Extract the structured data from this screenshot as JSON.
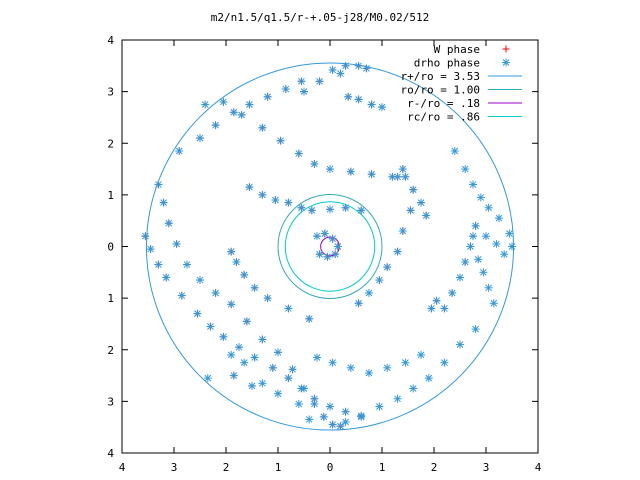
{
  "chart_data": {
    "type": "scatter",
    "title": "m2/n1.5/q1.5/r-+.05-j28/M0.02/512",
    "xlim": [
      -4,
      4
    ],
    "ylim": [
      -4,
      4
    ],
    "x_tick_labels": [
      "4",
      "3",
      "2",
      "1",
      "0",
      "1",
      "2",
      "3",
      "4"
    ],
    "y_tick_labels": [
      "4",
      "3",
      "2",
      "1",
      "0",
      "1",
      "2",
      "3",
      "4"
    ],
    "grid": false,
    "legend_position": "top-right",
    "legend": [
      {
        "label": "W phase",
        "kind": "points",
        "marker": "plus",
        "color": "#ff0000"
      },
      {
        "label": "drho phase",
        "kind": "points",
        "marker": "star",
        "color": "#3399dd"
      },
      {
        "label": "r+/ro = 3.53",
        "kind": "circle",
        "radius": 3.53,
        "color": "#3399dd"
      },
      {
        "label": "ro/ro = 1.00",
        "kind": "circle",
        "radius": 1.0,
        "color": "#33aabb"
      },
      {
        "label": "r-/ro =  .18",
        "kind": "circle",
        "radius": 0.18,
        "color": "#9900cc"
      },
      {
        "label": "rc/ro =  .86",
        "kind": "circle",
        "radius": 0.86,
        "color": "#00cccc"
      }
    ],
    "series": [
      {
        "name": "W phase",
        "marker": "plus",
        "color": "#ff0000",
        "points": [
          [
            0.2,
            -3.48
          ],
          [
            0.05,
            -3.45
          ],
          [
            -0.12,
            -3.3
          ],
          [
            -0.3,
            -3.05
          ],
          [
            -0.5,
            -2.75
          ],
          [
            -0.72,
            -2.38
          ],
          [
            -1.0,
            -2.05
          ],
          [
            -1.3,
            -1.8
          ],
          [
            -1.6,
            -1.45
          ],
          [
            -1.9,
            -1.12
          ],
          [
            -2.2,
            -0.9
          ],
          [
            -2.5,
            -0.65
          ],
          [
            -2.75,
            -0.35
          ],
          [
            -2.95,
            0.05
          ],
          [
            -3.1,
            0.45
          ],
          [
            -3.2,
            0.85
          ],
          [
            -3.3,
            1.2
          ],
          [
            -3.55,
            0.2
          ],
          [
            -3.45,
            -0.05
          ],
          [
            -3.3,
            -0.35
          ],
          [
            -3.15,
            -0.6
          ],
          [
            -2.85,
            -0.95
          ],
          [
            -2.55,
            -1.3
          ],
          [
            -2.3,
            -1.55
          ],
          [
            -2.05,
            -1.75
          ],
          [
            -1.75,
            -1.95
          ],
          [
            -1.45,
            -2.15
          ],
          [
            -1.1,
            -2.35
          ],
          [
            -0.8,
            -2.55
          ],
          [
            -0.55,
            -2.75
          ],
          [
            -0.3,
            -2.95
          ],
          [
            0.0,
            -3.1
          ],
          [
            0.3,
            -3.2
          ],
          [
            0.6,
            -3.28
          ],
          [
            -2.05,
            2.8
          ],
          [
            -1.7,
            2.55
          ],
          [
            -1.3,
            2.3
          ],
          [
            -0.95,
            2.05
          ],
          [
            -0.6,
            1.8
          ],
          [
            -0.3,
            1.6
          ],
          [
            0.0,
            1.5
          ],
          [
            0.4,
            1.45
          ],
          [
            0.8,
            1.4
          ],
          [
            1.2,
            1.35
          ],
          [
            1.45,
            1.35
          ],
          [
            1.6,
            1.1
          ],
          [
            1.75,
            0.85
          ],
          [
            1.85,
            0.6
          ],
          [
            -0.5,
            3.0
          ],
          [
            -0.2,
            3.2
          ],
          [
            0.2,
            3.35
          ],
          [
            -2.9,
            1.85
          ],
          [
            -2.5,
            2.1
          ],
          [
            -2.2,
            2.35
          ],
          [
            -1.85,
            2.6
          ],
          [
            -1.55,
            2.75
          ],
          [
            -1.2,
            2.9
          ],
          [
            -0.85,
            3.05
          ],
          [
            -0.55,
            3.2
          ],
          [
            0.05,
            3.42
          ],
          [
            0.3,
            3.5
          ],
          [
            0.55,
            3.5
          ],
          [
            0.7,
            3.45
          ],
          [
            0.35,
            2.9
          ],
          [
            0.55,
            2.85
          ],
          [
            0.8,
            2.75
          ],
          [
            1.0,
            2.7
          ],
          [
            -0.4,
            -1.4
          ],
          [
            -0.8,
            -1.2
          ],
          [
            -1.2,
            -1.0
          ],
          [
            -1.45,
            -0.8
          ],
          [
            -1.65,
            -0.55
          ],
          [
            -1.8,
            -0.3
          ],
          [
            -1.9,
            -0.1
          ],
          [
            0.55,
            -1.1
          ],
          [
            0.75,
            -0.9
          ],
          [
            0.95,
            -0.65
          ],
          [
            1.1,
            -0.4
          ],
          [
            1.3,
            -0.1
          ],
          [
            1.4,
            0.3
          ],
          [
            1.55,
            0.7
          ],
          [
            -1.55,
            1.15
          ],
          [
            -1.3,
            1.0
          ],
          [
            -1.05,
            0.9
          ],
          [
            -0.8,
            0.85
          ],
          [
            -0.55,
            0.75
          ],
          [
            -0.35,
            0.7
          ],
          [
            0.0,
            0.72
          ],
          [
            0.3,
            0.75
          ],
          [
            0.6,
            0.7
          ],
          [
            -0.25,
            0.2
          ],
          [
            -0.1,
            0.25
          ],
          [
            0.05,
            0.15
          ],
          [
            0.15,
            0.0
          ],
          [
            0.1,
            -0.15
          ],
          [
            -0.05,
            -0.2
          ],
          [
            -0.2,
            -0.15
          ],
          [
            2.2,
            -1.2
          ],
          [
            2.35,
            -0.9
          ],
          [
            2.5,
            -0.6
          ],
          [
            2.6,
            -0.3
          ],
          [
            2.7,
            0.0
          ],
          [
            2.75,
            0.2
          ],
          [
            2.8,
            0.4
          ],
          [
            -1.85,
            -2.5
          ],
          [
            -1.5,
            -2.7
          ],
          [
            1.3,
            1.35
          ],
          [
            1.4,
            1.5
          ],
          [
            2.05,
            -1.05
          ],
          [
            1.95,
            -1.2
          ]
        ]
      },
      {
        "name": "drho phase",
        "marker": "star",
        "color": "#3399dd",
        "points": [
          [
            0.2,
            -3.48
          ],
          [
            0.05,
            -3.45
          ],
          [
            -0.12,
            -3.3
          ],
          [
            -0.3,
            -3.05
          ],
          [
            -0.5,
            -2.75
          ],
          [
            -0.72,
            -2.38
          ],
          [
            -1.0,
            -2.05
          ],
          [
            -1.3,
            -1.8
          ],
          [
            -1.6,
            -1.45
          ],
          [
            -1.9,
            -1.12
          ],
          [
            -2.2,
            -0.9
          ],
          [
            -2.5,
            -0.65
          ],
          [
            -2.75,
            -0.35
          ],
          [
            -2.95,
            0.05
          ],
          [
            -3.1,
            0.45
          ],
          [
            -3.2,
            0.85
          ],
          [
            -3.3,
            1.2
          ],
          [
            -3.55,
            0.2
          ],
          [
            -3.45,
            -0.05
          ],
          [
            -3.3,
            -0.35
          ],
          [
            -3.15,
            -0.6
          ],
          [
            -2.85,
            -0.95
          ],
          [
            -2.55,
            -1.3
          ],
          [
            -2.3,
            -1.55
          ],
          [
            -2.05,
            -1.75
          ],
          [
            -1.75,
            -1.95
          ],
          [
            -1.45,
            -2.15
          ],
          [
            -1.1,
            -2.35
          ],
          [
            -0.8,
            -2.55
          ],
          [
            -0.55,
            -2.75
          ],
          [
            -0.3,
            -2.95
          ],
          [
            0.0,
            -3.1
          ],
          [
            0.3,
            -3.2
          ],
          [
            0.6,
            -3.28
          ],
          [
            -2.05,
            2.8
          ],
          [
            -1.7,
            2.55
          ],
          [
            -1.3,
            2.3
          ],
          [
            -0.95,
            2.05
          ],
          [
            -0.6,
            1.8
          ],
          [
            -0.3,
            1.6
          ],
          [
            0.0,
            1.5
          ],
          [
            0.4,
            1.45
          ],
          [
            0.8,
            1.4
          ],
          [
            1.2,
            1.35
          ],
          [
            1.45,
            1.35
          ],
          [
            1.6,
            1.1
          ],
          [
            1.75,
            0.85
          ],
          [
            1.85,
            0.6
          ],
          [
            -0.5,
            3.0
          ],
          [
            -0.2,
            3.2
          ],
          [
            0.2,
            3.35
          ],
          [
            -2.9,
            1.85
          ],
          [
            -2.5,
            2.1
          ],
          [
            -2.2,
            2.35
          ],
          [
            -1.85,
            2.6
          ],
          [
            -1.55,
            2.75
          ],
          [
            -1.2,
            2.9
          ],
          [
            -0.85,
            3.05
          ],
          [
            -0.55,
            3.2
          ],
          [
            0.05,
            3.42
          ],
          [
            0.3,
            3.5
          ],
          [
            0.55,
            3.5
          ],
          [
            0.7,
            3.45
          ],
          [
            0.35,
            2.9
          ],
          [
            0.55,
            2.85
          ],
          [
            0.8,
            2.75
          ],
          [
            1.0,
            2.7
          ],
          [
            -0.4,
            -1.4
          ],
          [
            -0.8,
            -1.2
          ],
          [
            -1.2,
            -1.0
          ],
          [
            -1.45,
            -0.8
          ],
          [
            -1.65,
            -0.55
          ],
          [
            -1.8,
            -0.3
          ],
          [
            -1.9,
            -0.1
          ],
          [
            0.55,
            -1.1
          ],
          [
            0.75,
            -0.9
          ],
          [
            0.95,
            -0.65
          ],
          [
            1.1,
            -0.4
          ],
          [
            1.3,
            -0.1
          ],
          [
            1.4,
            0.3
          ],
          [
            1.55,
            0.7
          ],
          [
            -1.55,
            1.15
          ],
          [
            -1.3,
            1.0
          ],
          [
            -1.05,
            0.9
          ],
          [
            -0.8,
            0.85
          ],
          [
            -0.55,
            0.75
          ],
          [
            -0.35,
            0.7
          ],
          [
            0.0,
            0.72
          ],
          [
            0.3,
            0.75
          ],
          [
            0.6,
            0.7
          ],
          [
            -0.25,
            0.2
          ],
          [
            -0.1,
            0.25
          ],
          [
            0.05,
            0.15
          ],
          [
            0.15,
            0.0
          ],
          [
            0.1,
            -0.15
          ],
          [
            -0.05,
            -0.2
          ],
          [
            -0.2,
            -0.15
          ],
          [
            2.2,
            -1.2
          ],
          [
            2.35,
            -0.9
          ],
          [
            2.5,
            -0.6
          ],
          [
            2.6,
            -0.3
          ],
          [
            2.7,
            0.0
          ],
          [
            2.75,
            0.2
          ],
          [
            2.8,
            0.4
          ],
          [
            -1.85,
            -2.5
          ],
          [
            -1.5,
            -2.7
          ],
          [
            1.3,
            1.35
          ],
          [
            1.4,
            1.5
          ],
          [
            2.05,
            -1.05
          ],
          [
            1.95,
            -1.2
          ],
          [
            2.4,
            1.85
          ],
          [
            2.6,
            1.5
          ],
          [
            2.75,
            1.2
          ],
          [
            2.9,
            0.95
          ],
          [
            3.05,
            0.75
          ],
          [
            3.25,
            0.55
          ],
          [
            3.45,
            0.25
          ],
          [
            3.5,
            0.0
          ],
          [
            3.35,
            -0.15
          ],
          [
            3.2,
            0.05
          ],
          [
            3.0,
            0.2
          ],
          [
            2.85,
            -0.25
          ],
          [
            2.95,
            -0.5
          ],
          [
            3.05,
            -0.8
          ],
          [
            3.15,
            -1.1
          ],
          [
            2.8,
            -1.6
          ],
          [
            2.5,
            -1.9
          ],
          [
            2.2,
            -2.25
          ],
          [
            1.9,
            -2.55
          ],
          [
            1.6,
            -2.75
          ],
          [
            1.3,
            -2.95
          ],
          [
            0.95,
            -3.1
          ],
          [
            0.6,
            -3.3
          ],
          [
            1.75,
            -2.1
          ],
          [
            1.45,
            -2.25
          ],
          [
            1.1,
            -2.35
          ],
          [
            0.75,
            -2.45
          ],
          [
            -1.9,
            -2.1
          ],
          [
            -1.65,
            -2.25
          ],
          [
            -1.3,
            -2.65
          ],
          [
            -1.0,
            -2.85
          ],
          [
            -0.6,
            -3.05
          ],
          [
            -2.35,
            -2.55
          ],
          [
            -0.25,
            -2.15
          ],
          [
            0.05,
            -2.25
          ],
          [
            0.4,
            -2.35
          ],
          [
            -2.4,
            2.75
          ],
          [
            -0.4,
            -3.35
          ],
          [
            0.3,
            -3.4
          ]
        ]
      }
    ]
  }
}
